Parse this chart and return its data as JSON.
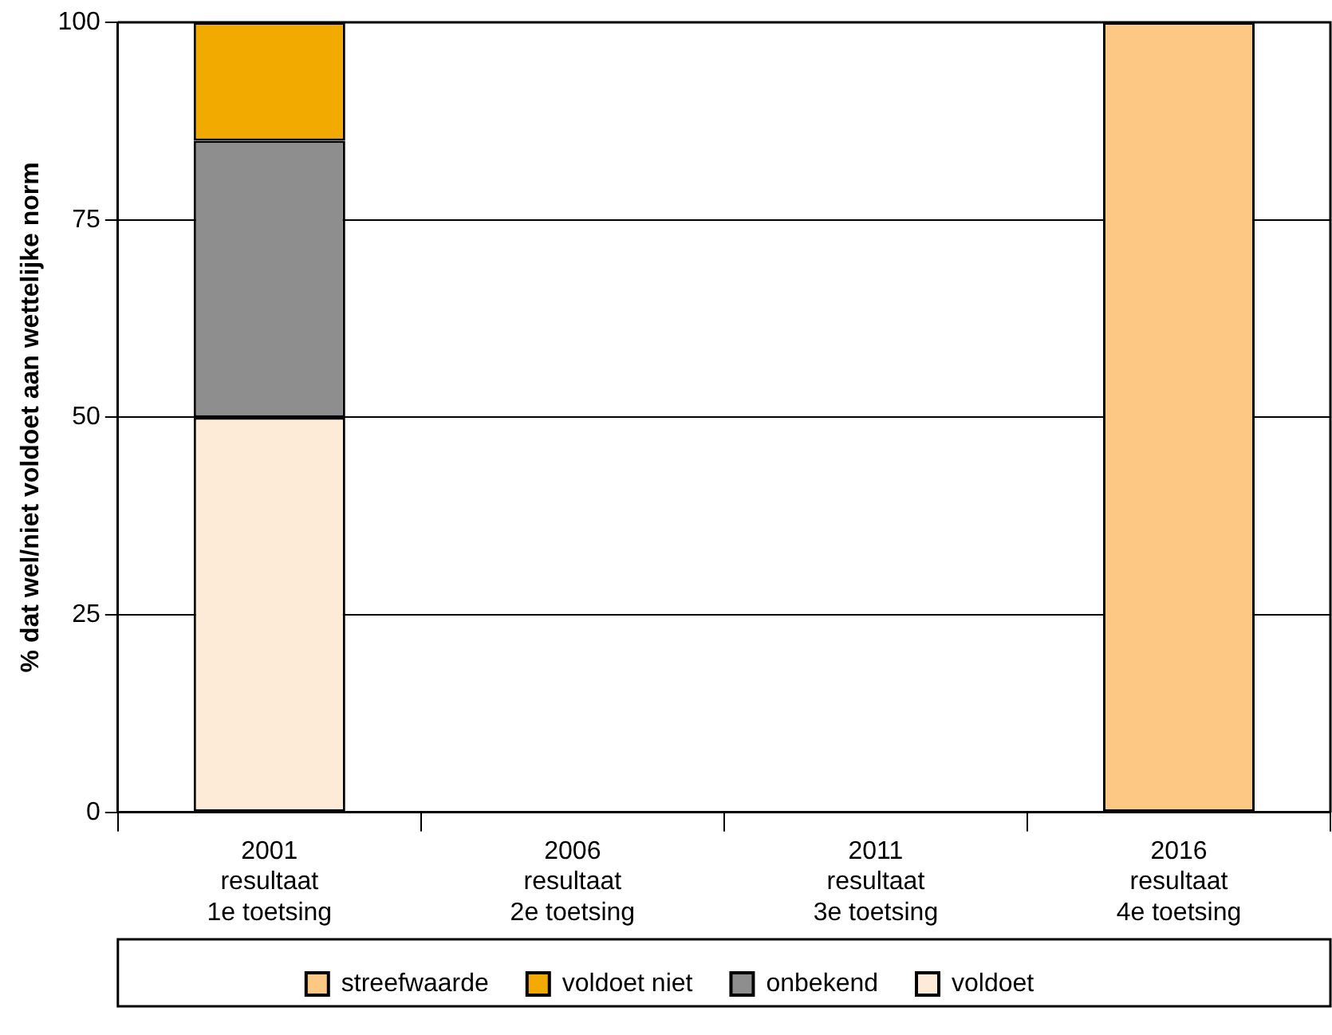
{
  "chart_data": {
    "type": "bar",
    "stacked": true,
    "ylabel": "% dat wel/niet voldoet aan wettelijke norm",
    "categories": [
      "2001\nresultaat\n1e toetsing",
      "2006\nresultaat\n2e toetsing",
      "2011\nresultaat\n3e toetsing",
      "2016\nresultaat\n4e toetsing"
    ],
    "series": [
      {
        "name": "voldoet",
        "color": "#fdebd7",
        "values": [
          50,
          null,
          null,
          null
        ]
      },
      {
        "name": "onbekend",
        "color": "#8e8e8e",
        "values": [
          35,
          null,
          null,
          null
        ]
      },
      {
        "name": "voldoet niet",
        "color": "#f2a900",
        "values": [
          15,
          null,
          null,
          null
        ]
      },
      {
        "name": "streefwaarde",
        "color": "#fdc883",
        "values": [
          null,
          null,
          null,
          100
        ]
      }
    ],
    "ylim": [
      0,
      100
    ],
    "yticks": [
      0,
      25,
      50,
      75,
      100
    ],
    "grid": "y",
    "legend": "bottom"
  }
}
